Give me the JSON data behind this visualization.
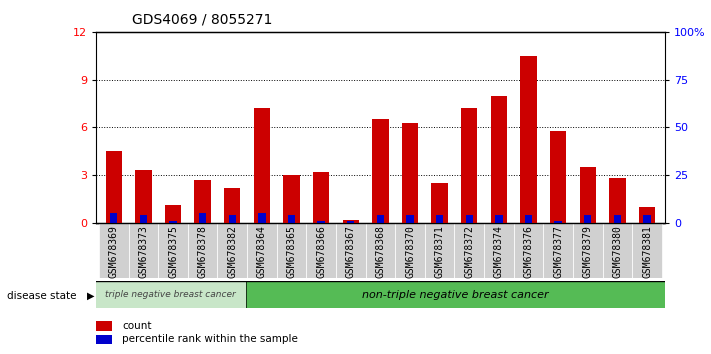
{
  "title": "GDS4069 / 8055271",
  "samples": [
    "GSM678369",
    "GSM678373",
    "GSM678375",
    "GSM678378",
    "GSM678382",
    "GSM678364",
    "GSM678365",
    "GSM678366",
    "GSM678367",
    "GSM678368",
    "GSM678370",
    "GSM678371",
    "GSM678372",
    "GSM678374",
    "GSM678376",
    "GSM678377",
    "GSM678379",
    "GSM678380",
    "GSM678381"
  ],
  "count_values": [
    4.5,
    3.3,
    1.1,
    2.7,
    2.2,
    7.2,
    3.0,
    3.2,
    0.2,
    6.5,
    6.3,
    2.5,
    7.2,
    8.0,
    10.5,
    5.8,
    3.5,
    2.8,
    1.0
  ],
  "percentile_values": [
    5,
    4,
    1,
    5,
    4,
    5,
    4,
    1,
    1,
    4,
    4,
    4,
    4,
    4,
    4,
    1,
    4,
    4,
    4
  ],
  "bar_color_red": "#cc0000",
  "bar_color_blue": "#0000cc",
  "ylim_left": [
    0,
    12
  ],
  "ylim_right": [
    0,
    100
  ],
  "yticks_left": [
    0,
    3,
    6,
    9,
    12
  ],
  "yticks_right": [
    0,
    25,
    50,
    75,
    100
  ],
  "ytick_labels_right": [
    "0",
    "25",
    "50",
    "75",
    "100%"
  ],
  "group1_label": "triple negative breast cancer",
  "group2_label": "non-triple negative breast cancer",
  "group1_count": 5,
  "group2_count": 14,
  "disease_state_label": "disease state",
  "legend_count": "count",
  "legend_percentile": "percentile rank within the sample",
  "bg_plot": "#ffffff",
  "bg_group1": "#c8e6c8",
  "bg_group2": "#55bb55",
  "title_fontsize": 10,
  "tick_fontsize": 7,
  "label_fontsize": 8
}
